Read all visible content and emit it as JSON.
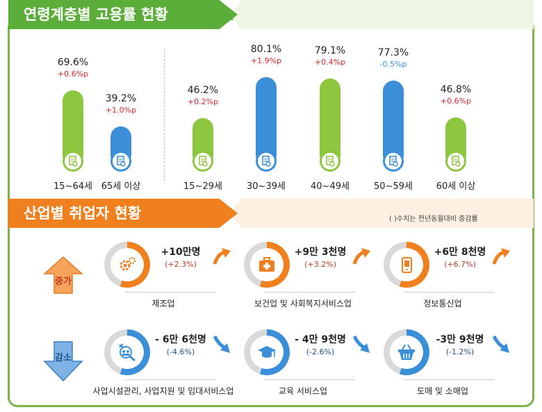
{
  "section1": {
    "title": "연령계층별 고용률 현황"
  },
  "section2": {
    "title": "산업별 취업자 현황",
    "note": "(  )수치는 전년동월대비 증감률"
  },
  "chart_data": {
    "type": "bar",
    "title": "연령계층별 고용률 현황",
    "unit": "%",
    "categories": [
      "15~64세",
      "65세 이상",
      "15~29세",
      "30~39세",
      "40~49세",
      "50~59세",
      "60세 이상"
    ],
    "values": [
      69.6,
      39.2,
      46.2,
      80.1,
      79.1,
      77.3,
      46.8
    ],
    "value_labels": [
      "69.6%",
      "39.2%",
      "46.2%",
      "80.1%",
      "79.1%",
      "77.3%",
      "46.8%"
    ],
    "changes": [
      "+0.6%p",
      "+1.0%p",
      "+0.2%p",
      "+1.9%p",
      "+0.4%p",
      "-0.5%p",
      "+0.6%p"
    ],
    "colors": [
      "#8dc63f",
      "#3b8fd9",
      "#8dc63f",
      "#3b8fd9",
      "#8dc63f",
      "#3b8fd9",
      "#8dc63f"
    ]
  },
  "increase": {
    "label": "증가",
    "items": [
      {
        "name": "제조업",
        "value": "+10만명",
        "change": "(+2.3%)",
        "icon": "gear-icon"
      },
      {
        "name": "보건업 및 사회복지서비스업",
        "value": "+9만 3천명",
        "change": "(+3.2%)",
        "icon": "first-aid-kit-icon"
      },
      {
        "name": "정보통신업",
        "value": "+6만 8천명",
        "change": "(+6.7%)",
        "icon": "smartphone-icon"
      }
    ]
  },
  "decrease": {
    "label": "감소",
    "items": [
      {
        "name": "사업시설관리, 사업지원 및 임대서비스업",
        "value": "- 6만 6천명",
        "change": "(-4.6%)",
        "icon": "people-search-icon"
      },
      {
        "name": "교육 서비스업",
        "value": "- 4만 9천명",
        "change": "(-2.6%)",
        "icon": "graduation-cap-icon"
      },
      {
        "name": "도매 및 소매업",
        "value": "-3만 9천명",
        "change": "(-1.2%)",
        "icon": "shopping-basket-icon"
      }
    ]
  },
  "colors": {
    "green": "#8dc63f",
    "blue": "#3b8fd9",
    "orange": "#f07f1e",
    "red": "#d8262f"
  }
}
